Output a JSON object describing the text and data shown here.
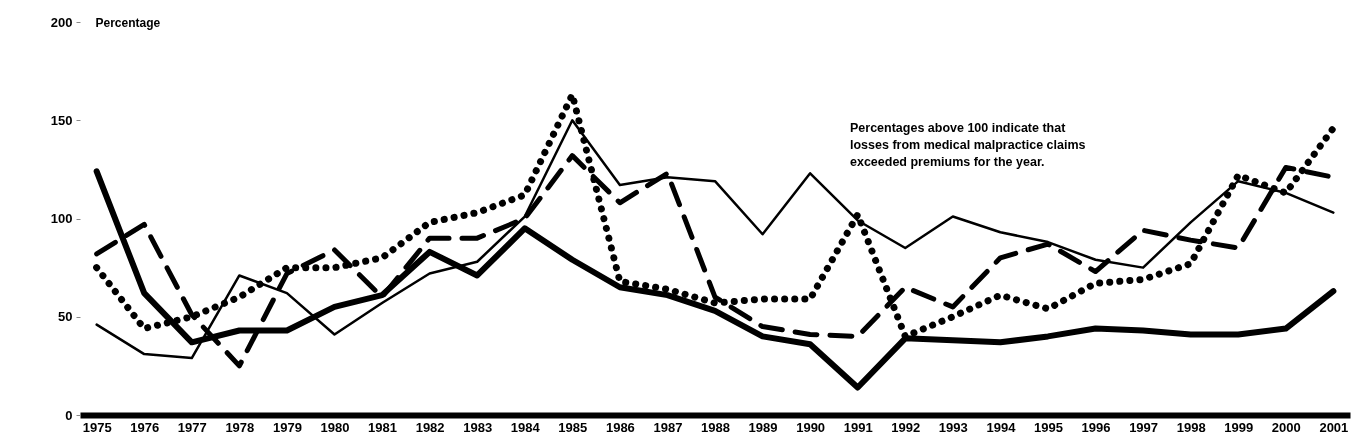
{
  "chart_data": {
    "type": "line",
    "ylabel": "Percentage",
    "categories": [
      "1975",
      "1976",
      "1977",
      "1978",
      "1979",
      "1980",
      "1981",
      "1982",
      "1983",
      "1984",
      "1985",
      "1986",
      "1987",
      "1988",
      "1989",
      "1990",
      "1991",
      "1992",
      "1993",
      "1994",
      "1995",
      "1996",
      "1997",
      "1998",
      "1999",
      "2000",
      "2001"
    ],
    "series": [
      {
        "color": "#000000",
        "line_style": "solid",
        "values": [
          46,
          31,
          29,
          71,
          62,
          41,
          57,
          72,
          78,
          101,
          150,
          117,
          121,
          119,
          92,
          123,
          99,
          85,
          101,
          93,
          88,
          79,
          75,
          98,
          119,
          113,
          103
        ]
      },
      {
        "color": "#000000",
        "line_style": "solid",
        "values": [
          124,
          62,
          37,
          43,
          43,
          55,
          61,
          83,
          71,
          95,
          79,
          65,
          61,
          53,
          40,
          36,
          14,
          39,
          38,
          37,
          40,
          44,
          43,
          41,
          41,
          44,
          63
        ]
      },
      {
        "color": "#000000",
        "line_style": "dashed",
        "values": [
          82,
          97,
          51,
          25,
          72,
          84,
          60,
          90,
          90,
          100,
          132,
          108,
          123,
          60,
          45,
          41,
          40,
          65,
          55,
          80,
          87,
          73,
          94,
          89,
          85,
          126,
          121
        ]
      },
      {
        "color": "#000000",
        "line_style": "dotted",
        "values": [
          75,
          44,
          50,
          60,
          75,
          75,
          80,
          98,
          103,
          112,
          163,
          68,
          64,
          57,
          59,
          59,
          102,
          40,
          50,
          61,
          54,
          67,
          69,
          77,
          122,
          113,
          146
        ]
      }
    ],
    "ylim": [
      0,
      200
    ],
    "yticks": [
      0,
      50,
      100,
      150,
      200
    ],
    "annotations": [
      "Percentages above 100 indicate that\nlosses from medical malpractice claims\nexceeded premiums for the year."
    ]
  }
}
